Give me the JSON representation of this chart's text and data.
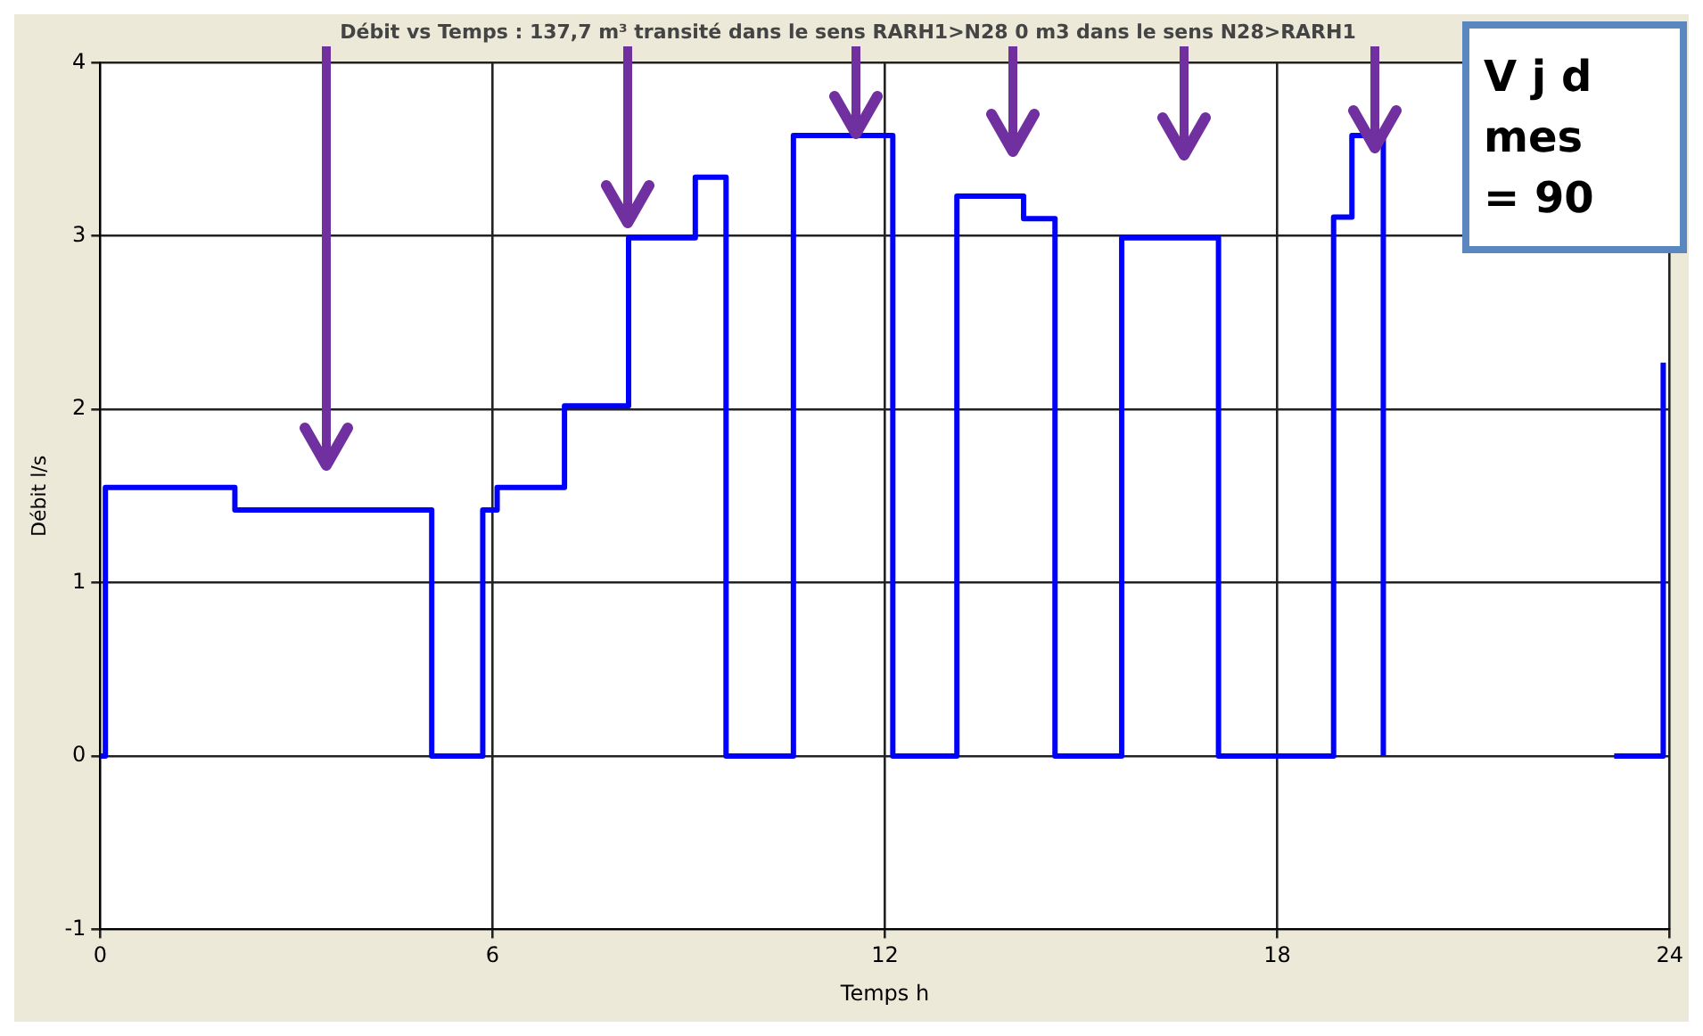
{
  "chart_data": {
    "type": "step",
    "title": "Débit vs Temps : 137,7 m³ transité dans le sens RARH1>N28 0 m3 dans le sens N28>RARH1",
    "xlabel": "Temps h",
    "ylabel": "Débit l/s",
    "x": [
      0,
      0.08,
      2.06,
      5.07,
      5.85,
      6.07,
      7.1,
      8.08,
      9.1,
      9.57,
      10.6,
      12.12,
      13.1,
      14.12,
      14.6,
      15.62,
      17.1,
      18.86,
      19.14,
      19.62,
      21.6,
      23.15,
      23.9
    ],
    "series": [
      {
        "color": "#0000ff",
        "values": [
          0,
          1.55,
          1.42,
          0,
          1.42,
          1.55,
          2.02,
          2.99,
          3.34,
          0,
          3.58,
          0,
          3.23,
          3.1,
          0,
          2.99,
          0,
          3.11,
          3.58,
          0,
          null,
          0,
          2.27
        ]
      }
    ],
    "xlim": [
      0,
      24
    ],
    "xticks": [
      0,
      6,
      12,
      18,
      24
    ],
    "ylim": [
      -1,
      4
    ],
    "yticks": [
      -1,
      0,
      1,
      2,
      3,
      4
    ],
    "grid": true,
    "annotations": [
      "V j d",
      "mes",
      "= 90"
    ]
  }
}
